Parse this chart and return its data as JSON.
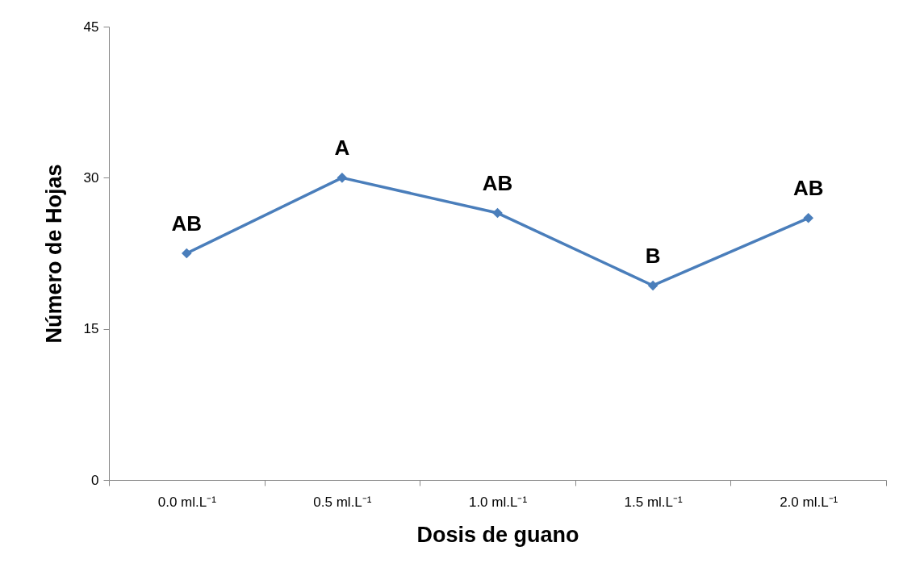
{
  "chart_data": {
    "type": "line",
    "xlabel": "Dosis de guano",
    "ylabel": "Número de Hojas",
    "categories": [
      "0.0 ml.L⁻¹",
      "0.5 ml.L⁻¹",
      "1.0 ml.L⁻¹",
      "1.5 ml.L⁻¹",
      "2.0 ml.L⁻¹"
    ],
    "series": [
      {
        "color": "#4a7ebb",
        "values": [
          22.5,
          30,
          26.5,
          19.3,
          26
        ]
      }
    ],
    "ylim": [
      0,
      45
    ],
    "yticks": [
      0,
      15,
      30,
      45
    ],
    "grid": false,
    "legend": false,
    "marker": "diamond",
    "line_style": "solid",
    "annotations": [
      {
        "text": "AB",
        "x": "0.0 ml.L⁻¹",
        "y": 22.5
      },
      {
        "text": "A",
        "x": "0.5 ml.L⁻¹",
        "y": 30
      },
      {
        "text": "AB",
        "x": "1.0 ml.L⁻¹",
        "y": 26.5
      },
      {
        "text": "B",
        "x": "1.5 ml.L⁻¹",
        "y": 19.3
      },
      {
        "text": "AB",
        "x": "2.0 ml.L⁻¹",
        "y": 26
      }
    ]
  }
}
